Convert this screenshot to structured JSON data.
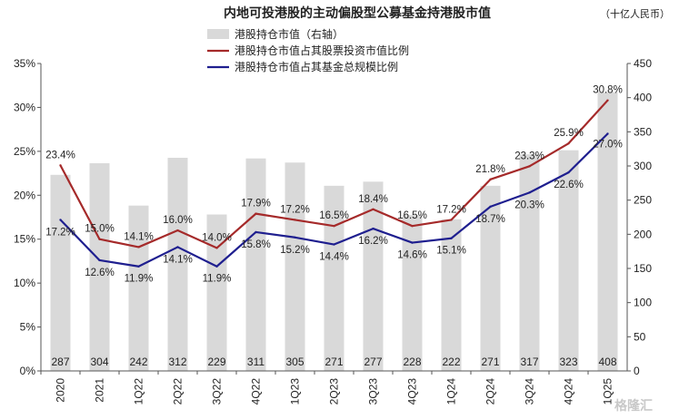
{
  "chart_data": {
    "type": "bar+line",
    "title": "内地可投港股的主动偏股型公募基金持港股市值",
    "unit_label": "（十亿人民币）",
    "categories": [
      "2020",
      "2021",
      "1Q22",
      "2Q22",
      "3Q22",
      "4Q22",
      "1Q23",
      "2Q23",
      "3Q23",
      "4Q23",
      "1Q24",
      "2Q24",
      "3Q24",
      "4Q24",
      "1Q25"
    ],
    "bars": {
      "name": "港股持仓市值（右轴）",
      "color": "#d9d9d9",
      "axis": "right",
      "values": [
        287,
        304,
        242,
        312,
        229,
        311,
        305,
        271,
        277,
        228,
        222,
        271,
        317,
        323,
        408
      ]
    },
    "series": [
      {
        "name": "港股持仓市值占其股票投资市值比例",
        "color": "#a52a2a",
        "axis": "left",
        "values": [
          23.4,
          15.0,
          14.1,
          16.0,
          14.0,
          17.9,
          17.2,
          16.5,
          18.4,
          16.5,
          17.2,
          21.8,
          23.3,
          25.9,
          30.8
        ],
        "labels": [
          "23.4%",
          "15.0%",
          "14.1%",
          "16.0%",
          "14.0%",
          "17.9%",
          "17.2%",
          "16.5%",
          "18.4%",
          "16.5%",
          "17.2%",
          "21.8%",
          "23.3%",
          "25.9%",
          "30.8%"
        ]
      },
      {
        "name": "港股持仓市值占其基金总规模比例",
        "color": "#1f1f8f",
        "axis": "left",
        "values": [
          17.2,
          12.6,
          11.9,
          14.1,
          11.9,
          15.8,
          15.2,
          14.4,
          16.2,
          14.6,
          15.1,
          18.7,
          20.3,
          22.6,
          27.0
        ],
        "labels": [
          "17.2%",
          "12.6%",
          "11.9%",
          "14.1%",
          "11.9%",
          "15.8%",
          "15.2%",
          "14.4%",
          "16.2%",
          "14.6%",
          "15.1%",
          "18.7%",
          "20.3%",
          "22.6%",
          "27.0%"
        ]
      }
    ],
    "y_left": {
      "min": 0,
      "max": 35,
      "ticks": [
        "0%",
        "5%",
        "10%",
        "15%",
        "20%",
        "25%",
        "30%",
        "35%"
      ]
    },
    "y_right": {
      "min": 0,
      "max": 450,
      "ticks": [
        "0",
        "50",
        "100",
        "150",
        "200",
        "250",
        "300",
        "350",
        "400",
        "450"
      ]
    },
    "grid": false,
    "legend": "top-center"
  },
  "watermark": "格隆汇"
}
